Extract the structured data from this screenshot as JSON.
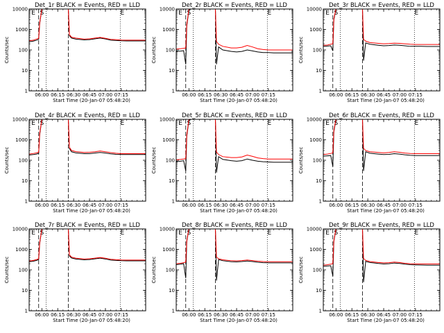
{
  "layout_order": [
    "1r",
    "2r",
    "3r",
    "4r",
    "5r",
    "6r",
    "7r",
    "8r",
    "9r"
  ],
  "common": {
    "title_template": "Det_{id} BLACK = Events, RED = LLD",
    "ylabel": "Counts/sec",
    "xlabel": "Start Time (20-Jan-07 05:48:20)",
    "x_ticks": [
      "06:00",
      "06:15",
      "06:30",
      "06:45",
      "07:00",
      "07:15"
    ],
    "y_ticks": [
      "1",
      "10",
      "100",
      "1000",
      "10000"
    ],
    "y_scale": "log",
    "ylim": [
      1,
      10000
    ],
    "xlim_minutes": [
      -12,
      98
    ],
    "series_colors": {
      "events": "#000000",
      "lld": "#ff0000"
    },
    "vertical_lines": [
      {
        "t": -3,
        "style": "dashed"
      },
      {
        "t": 4,
        "style": "dotted"
      },
      {
        "t": 25,
        "style": "dashed"
      },
      {
        "t": 74,
        "style": "dotted"
      }
    ],
    "marker_labels": [
      {
        "text": "E",
        "t": -8
      },
      {
        "text": "S",
        "t": 0
      },
      {
        "text": "E",
        "t": 76
      }
    ]
  },
  "chart_data": [
    {
      "type": "line",
      "id": "1r",
      "title": "Det_1r BLACK = Events, RED = LLD",
      "xlabel": "Start Time (20-Jan-07 05:48:20)",
      "ylabel": "Counts/sec",
      "ylim": [
        1,
        10000
      ],
      "y_scale": "log",
      "x": [
        -12,
        -8,
        -5,
        -3,
        -2,
        0,
        2,
        5,
        10,
        15,
        18,
        21,
        23,
        24,
        25,
        26,
        28,
        32,
        40,
        45,
        50,
        55,
        60,
        65,
        70,
        75,
        80,
        86,
        92,
        98
      ],
      "series": [
        {
          "name": "Events",
          "color": "#000000",
          "values": [
            250,
            270,
            300,
            330,
            2000,
            10000,
            10000,
            10000,
            10000,
            10000,
            10000,
            10000,
            10000,
            10000,
            10000,
            500,
            380,
            340,
            310,
            320,
            350,
            380,
            345,
            300,
            290,
            280,
            275,
            275,
            275,
            275
          ]
        },
        {
          "name": "LLD",
          "color": "#ff0000",
          "values": [
            280,
            300,
            340,
            370,
            2200,
            10000,
            10000,
            10000,
            10000,
            10000,
            10000,
            10000,
            10000,
            10000,
            10000,
            560,
            420,
            380,
            340,
            350,
            380,
            410,
            370,
            330,
            320,
            305,
            300,
            300,
            300,
            300
          ]
        }
      ]
    },
    {
      "type": "line",
      "id": "2r",
      "title": "Det_2r BLACK = Events, RED = LLD",
      "xlabel": "Start Time (20-Jan-07 05:48:20)",
      "ylabel": "Counts/sec",
      "ylim": [
        1,
        10000
      ],
      "y_scale": "log",
      "x": [
        -12,
        -8,
        -5,
        -3,
        -2,
        0,
        2,
        5,
        10,
        15,
        18,
        21,
        23,
        24,
        25,
        26,
        28,
        32,
        40,
        45,
        50,
        55,
        60,
        65,
        70,
        75,
        80,
        86,
        92,
        98
      ],
      "series": [
        {
          "name": "Events",
          "color": "#000000",
          "values": [
            85,
            88,
            92,
            20,
            1500,
            9000,
            10000,
            10000,
            10000,
            10000,
            10000,
            10000,
            10000,
            10000,
            10000,
            20,
            140,
            100,
            85,
            80,
            85,
            100,
            90,
            80,
            75,
            75,
            72,
            72,
            72,
            72
          ]
        },
        {
          "name": "LLD",
          "color": "#ff0000",
          "values": [
            110,
            115,
            120,
            125,
            1800,
            10000,
            10000,
            10000,
            10000,
            10000,
            10000,
            10000,
            10000,
            10000,
            10000,
            260,
            190,
            150,
            125,
            125,
            135,
            165,
            140,
            115,
            105,
            100,
            100,
            100,
            100,
            100
          ]
        }
      ]
    },
    {
      "type": "line",
      "id": "3r",
      "title": "Det_3r BLACK = Events, RED = LLD",
      "xlabel": "Start Time (20-Jan-07 05:48:20)",
      "ylabel": "Counts/sec",
      "ylim": [
        1,
        10000
      ],
      "y_scale": "log",
      "x": [
        -12,
        -8,
        -5,
        -3,
        -2,
        0,
        2,
        5,
        10,
        15,
        18,
        21,
        23,
        24,
        25,
        26,
        28,
        32,
        40,
        45,
        50,
        55,
        60,
        65,
        70,
        75,
        80,
        86,
        92,
        98
      ],
      "series": [
        {
          "name": "Events",
          "color": "#000000",
          "values": [
            150,
            155,
            160,
            90,
            3000,
            10000,
            10000,
            10000,
            10000,
            10000,
            10000,
            10000,
            10000,
            10000,
            10000,
            30,
            220,
            190,
            170,
            160,
            165,
            175,
            170,
            160,
            150,
            150,
            150,
            148,
            148,
            148
          ]
        },
        {
          "name": "LLD",
          "color": "#ff0000",
          "values": [
            170,
            175,
            190,
            200,
            3500,
            10000,
            10000,
            10000,
            10000,
            10000,
            10000,
            10000,
            10000,
            10000,
            10000,
            330,
            270,
            230,
            210,
            200,
            205,
            215,
            210,
            200,
            190,
            185,
            185,
            185,
            185,
            185
          ]
        }
      ]
    },
    {
      "type": "line",
      "id": "4r",
      "title": "Det_4r BLACK = Events, RED = LLD",
      "xlabel": "Start Time (20-Jan-07 05:48:20)",
      "ylabel": "Counts/sec",
      "ylim": [
        1,
        10000
      ],
      "y_scale": "log",
      "x": [
        -12,
        -8,
        -5,
        -3,
        -2,
        0,
        2,
        5,
        10,
        15,
        18,
        21,
        23,
        24,
        25,
        26,
        28,
        32,
        40,
        45,
        50,
        55,
        60,
        65,
        70,
        75,
        80,
        86,
        92,
        98
      ],
      "series": [
        {
          "name": "Events",
          "color": "#000000",
          "values": [
            180,
            190,
            200,
            220,
            1800,
            10000,
            10000,
            10000,
            10000,
            10000,
            10000,
            10000,
            10000,
            10000,
            10000,
            380,
            260,
            230,
            210,
            210,
            225,
            240,
            225,
            205,
            195,
            190,
            190,
            190,
            190,
            190
          ]
        },
        {
          "name": "LLD",
          "color": "#ff0000",
          "values": [
            200,
            215,
            230,
            250,
            2100,
            10000,
            10000,
            10000,
            10000,
            10000,
            10000,
            10000,
            10000,
            10000,
            10000,
            430,
            300,
            265,
            240,
            245,
            260,
            285,
            260,
            235,
            220,
            210,
            210,
            210,
            210,
            210
          ]
        }
      ]
    },
    {
      "type": "line",
      "id": "5r",
      "title": "Det_5r BLACK = Events, RED = LLD",
      "xlabel": "Start Time (20-Jan-07 05:48:20)",
      "ylabel": "Counts/sec",
      "ylim": [
        1,
        10000
      ],
      "y_scale": "log",
      "x": [
        -12,
        -8,
        -5,
        -3,
        -2,
        0,
        2,
        5,
        10,
        15,
        18,
        21,
        23,
        24,
        25,
        26,
        28,
        32,
        40,
        45,
        50,
        55,
        60,
        65,
        70,
        75,
        80,
        86,
        92,
        98
      ],
      "series": [
        {
          "name": "Events",
          "color": "#000000",
          "values": [
            85,
            90,
            95,
            30,
            1500,
            9000,
            10000,
            10000,
            10000,
            10000,
            10000,
            10000,
            10000,
            10000,
            10000,
            25,
            150,
            110,
            95,
            90,
            95,
            115,
            100,
            90,
            85,
            82,
            80,
            80,
            80,
            80
          ]
        },
        {
          "name": "LLD",
          "color": "#ff0000",
          "values": [
            105,
            110,
            115,
            120,
            1800,
            10000,
            10000,
            10000,
            10000,
            10000,
            10000,
            10000,
            10000,
            10000,
            10000,
            250,
            190,
            150,
            135,
            135,
            145,
            180,
            155,
            130,
            120,
            115,
            115,
            115,
            115,
            115
          ]
        }
      ]
    },
    {
      "type": "line",
      "id": "6r",
      "title": "Det_6r BLACK = Events, RED = LLD",
      "xlabel": "Start Time (20-Jan-07 05:48:20)",
      "ylabel": "Counts/sec",
      "ylim": [
        1,
        10000
      ],
      "y_scale": "log",
      "x": [
        -12,
        -8,
        -5,
        -3,
        -2,
        0,
        2,
        5,
        10,
        15,
        18,
        21,
        23,
        24,
        25,
        26,
        28,
        32,
        40,
        45,
        50,
        55,
        60,
        65,
        70,
        75,
        80,
        86,
        92,
        98
      ],
      "series": [
        {
          "name": "Events",
          "color": "#000000",
          "values": [
            160,
            165,
            170,
            50,
            2500,
            10000,
            10000,
            10000,
            10000,
            10000,
            10000,
            10000,
            10000,
            10000,
            10000,
            30,
            260,
            220,
            200,
            190,
            195,
            210,
            200,
            185,
            175,
            170,
            170,
            170,
            170,
            170
          ]
        },
        {
          "name": "LLD",
          "color": "#ff0000",
          "values": [
            190,
            200,
            215,
            230,
            3000,
            10000,
            10000,
            10000,
            10000,
            10000,
            10000,
            10000,
            10000,
            10000,
            10000,
            380,
            300,
            260,
            240,
            230,
            240,
            260,
            245,
            225,
            215,
            210,
            210,
            210,
            210,
            210
          ]
        }
      ]
    },
    {
      "type": "line",
      "id": "7r",
      "title": "Det_7r BLACK = Events, RED = LLD",
      "xlabel": "Start Time (20-Jan-07 05:48:20)",
      "ylabel": "Counts/sec",
      "ylim": [
        1,
        10000
      ],
      "y_scale": "log",
      "x": [
        -12,
        -8,
        -5,
        -3,
        -2,
        0,
        2,
        5,
        10,
        15,
        18,
        21,
        23,
        24,
        25,
        26,
        28,
        32,
        40,
        45,
        50,
        55,
        60,
        65,
        70,
        75,
        80,
        86,
        92,
        98
      ],
      "series": [
        {
          "name": "Events",
          "color": "#000000",
          "values": [
            250,
            265,
            290,
            320,
            2000,
            10000,
            10000,
            10000,
            10000,
            10000,
            10000,
            10000,
            10000,
            10000,
            10000,
            480,
            380,
            340,
            310,
            320,
            345,
            375,
            340,
            300,
            290,
            280,
            275,
            275,
            275,
            275
          ]
        },
        {
          "name": "LLD",
          "color": "#ff0000",
          "values": [
            270,
            290,
            320,
            350,
            2200,
            10000,
            10000,
            10000,
            10000,
            10000,
            10000,
            10000,
            10000,
            10000,
            10000,
            540,
            420,
            375,
            340,
            350,
            375,
            405,
            370,
            330,
            315,
            305,
            300,
            300,
            300,
            300
          ]
        }
      ]
    },
    {
      "type": "line",
      "id": "8r",
      "title": "Det_8r BLACK = Events, RED = LLD",
      "xlabel": "Start Time (20-Jan-07 05:48:20)",
      "ylabel": "Counts/sec",
      "ylim": [
        1,
        10000
      ],
      "y_scale": "log",
      "x": [
        -12,
        -8,
        -5,
        -3,
        -2,
        0,
        2,
        5,
        10,
        15,
        18,
        21,
        23,
        24,
        25,
        26,
        28,
        32,
        40,
        45,
        50,
        55,
        60,
        65,
        70,
        75,
        80,
        86,
        92,
        98
      ],
      "series": [
        {
          "name": "Events",
          "color": "#000000",
          "values": [
            180,
            190,
            200,
            40,
            2500,
            10000,
            10000,
            10000,
            10000,
            10000,
            10000,
            10000,
            10000,
            10000,
            10000,
            30,
            320,
            280,
            250,
            245,
            255,
            270,
            255,
            235,
            225,
            220,
            220,
            220,
            220,
            220
          ]
        },
        {
          "name": "LLD",
          "color": "#ff0000",
          "values": [
            200,
            210,
            225,
            240,
            2800,
            10000,
            10000,
            10000,
            10000,
            10000,
            10000,
            10000,
            10000,
            10000,
            10000,
            420,
            350,
            310,
            280,
            275,
            285,
            305,
            285,
            265,
            255,
            250,
            250,
            250,
            250,
            250
          ]
        }
      ]
    },
    {
      "type": "line",
      "id": "9r",
      "title": "Det_9r BLACK = Events, RED = LLD",
      "xlabel": "Start Time (20-Jan-07 05:48:20)",
      "ylabel": "Counts/sec",
      "ylim": [
        1,
        10000
      ],
      "y_scale": "log",
      "x": [
        -12,
        -8,
        -5,
        -3,
        -2,
        0,
        2,
        5,
        10,
        15,
        18,
        21,
        23,
        24,
        25,
        26,
        28,
        32,
        40,
        45,
        50,
        55,
        60,
        65,
        70,
        75,
        80,
        86,
        92,
        98
      ],
      "series": [
        {
          "name": "Events",
          "color": "#000000",
          "values": [
            150,
            155,
            160,
            50,
            2500,
            10000,
            10000,
            10000,
            10000,
            10000,
            10000,
            10000,
            10000,
            10000,
            10000,
            25,
            260,
            230,
            205,
            195,
            200,
            215,
            205,
            190,
            180,
            175,
            172,
            170,
            170,
            170
          ]
        },
        {
          "name": "LLD",
          "color": "#ff0000",
          "values": [
            170,
            180,
            190,
            200,
            2800,
            10000,
            10000,
            10000,
            10000,
            10000,
            10000,
            10000,
            10000,
            10000,
            10000,
            360,
            290,
            255,
            230,
            220,
            225,
            240,
            230,
            210,
            200,
            195,
            195,
            195,
            195,
            195
          ]
        }
      ]
    }
  ]
}
